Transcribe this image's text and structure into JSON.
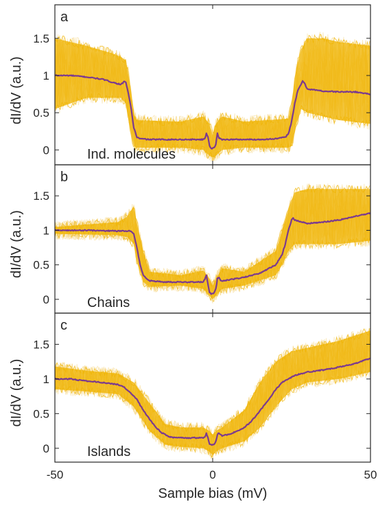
{
  "figure": {
    "xlabel": "Sample bias (mV)",
    "colors": {
      "band": "#f0b400",
      "band_light": "#f3cf6a",
      "mean": "#7b3a8f",
      "axis": "#262626"
    }
  },
  "chart_data": [
    {
      "type": "line",
      "panel": "a",
      "caption": "Ind. molecules",
      "xlabel": "Sample bias (mV)",
      "ylabel": "dI/dV (a.u.)",
      "xlim": [
        -50,
        50
      ],
      "ylim": [
        -0.2,
        1.95
      ],
      "xticks": [
        "-50",
        "0",
        "50"
      ],
      "yticks": [
        {
          "v": 0,
          "label": "0"
        },
        {
          "v": 0.5,
          "label": "0.5"
        },
        {
          "v": 1,
          "label": "1"
        },
        {
          "v": 1.5,
          "label": "1.5"
        }
      ],
      "grid": false,
      "series": [
        {
          "role": "mean",
          "x": [
            -50,
            -45,
            -40,
            -35,
            -31,
            -29,
            -28,
            -27.5,
            -27,
            -26,
            -25,
            -24,
            -23,
            -20,
            -15,
            -10,
            -5,
            -3,
            -2.4,
            -2,
            -1.5,
            -1,
            -0.5,
            0,
            0.5,
            1,
            1.5,
            2,
            2.4,
            3,
            5,
            10,
            15,
            20,
            23,
            24,
            25,
            26,
            27,
            28,
            28.5,
            29,
            30,
            35,
            40,
            45,
            50
          ],
          "y": [
            1.0,
            1.0,
            0.98,
            0.95,
            0.9,
            0.88,
            0.92,
            0.9,
            0.82,
            0.6,
            0.3,
            0.17,
            0.15,
            0.14,
            0.14,
            0.14,
            0.14,
            0.14,
            0.16,
            0.22,
            0.18,
            0.06,
            0.02,
            0.02,
            0.03,
            0.08,
            0.22,
            0.16,
            0.15,
            0.14,
            0.14,
            0.14,
            0.14,
            0.15,
            0.17,
            0.22,
            0.38,
            0.62,
            0.8,
            0.88,
            0.93,
            0.9,
            0.82,
            0.79,
            0.78,
            0.78,
            0.75
          ]
        },
        {
          "role": "band",
          "x": [
            -50,
            -40,
            -32,
            -29,
            -27.5,
            -26.5,
            -25,
            -24,
            -10,
            -3,
            -1,
            0,
            1,
            3,
            10,
            24,
            25,
            26.5,
            28,
            30,
            35,
            40,
            50
          ],
          "lower": [
            0.55,
            0.7,
            0.7,
            0.7,
            0.62,
            0.35,
            0.05,
            0.03,
            0.03,
            0.0,
            -0.08,
            -0.1,
            -0.08,
            0.0,
            0.03,
            0.03,
            0.05,
            0.35,
            0.55,
            0.5,
            0.45,
            0.4,
            0.35
          ],
          "upper": [
            1.5,
            1.4,
            1.3,
            1.25,
            1.2,
            0.95,
            0.48,
            0.4,
            0.38,
            0.45,
            0.35,
            0.2,
            0.35,
            0.45,
            0.38,
            0.42,
            0.6,
            1.1,
            1.35,
            1.5,
            1.5,
            1.45,
            1.4
          ]
        }
      ]
    },
    {
      "type": "line",
      "panel": "b",
      "caption": "Chains",
      "xlabel": "Sample bias (mV)",
      "ylabel": "dI/dV (a.u.)",
      "xlim": [
        -50,
        50
      ],
      "ylim": [
        -0.2,
        1.95
      ],
      "xticks": [
        "-50",
        "0",
        "50"
      ],
      "yticks": [
        {
          "v": 0,
          "label": "0"
        },
        {
          "v": 0.5,
          "label": "0.5"
        },
        {
          "v": 1,
          "label": "1"
        },
        {
          "v": 1.5,
          "label": "1.5"
        }
      ],
      "grid": false,
      "series": [
        {
          "role": "mean",
          "x": [
            -50,
            -40,
            -30,
            -26,
            -25,
            -24,
            -23,
            -22,
            -21,
            -20,
            -15,
            -10,
            -5,
            -3,
            -2.4,
            -2,
            -1.5,
            -1,
            -0.5,
            0,
            0.5,
            1,
            1.5,
            2,
            2.4,
            3,
            5,
            10,
            15,
            20,
            22,
            23,
            24,
            25,
            25.5,
            26,
            30,
            35,
            40,
            45,
            50
          ],
          "y": [
            1.0,
            1.0,
            0.99,
            0.99,
            0.95,
            0.75,
            0.5,
            0.35,
            0.3,
            0.27,
            0.25,
            0.25,
            0.25,
            0.25,
            0.3,
            0.35,
            0.22,
            0.1,
            0.08,
            0.08,
            0.1,
            0.15,
            0.3,
            0.32,
            0.28,
            0.27,
            0.28,
            0.32,
            0.38,
            0.5,
            0.65,
            0.8,
            1.0,
            1.15,
            1.18,
            1.15,
            1.1,
            1.12,
            1.15,
            1.2,
            1.25
          ]
        },
        {
          "role": "band",
          "x": [
            -50,
            -30,
            -27,
            -25,
            -24,
            -22,
            -20,
            -10,
            -3,
            -1,
            0,
            1,
            3,
            10,
            20,
            22,
            24,
            26,
            30,
            35,
            40,
            50
          ],
          "lower": [
            0.95,
            0.93,
            0.9,
            0.8,
            0.55,
            0.25,
            0.18,
            0.2,
            0.15,
            0.05,
            0.0,
            0.05,
            0.15,
            0.2,
            0.35,
            0.5,
            0.7,
            0.8,
            0.8,
            0.8,
            0.8,
            0.85
          ],
          "upper": [
            1.05,
            1.12,
            1.2,
            1.35,
            1.1,
            0.7,
            0.4,
            0.35,
            0.42,
            0.3,
            0.2,
            0.3,
            0.45,
            0.4,
            0.7,
            1.0,
            1.3,
            1.55,
            1.6,
            1.6,
            1.6,
            1.6
          ]
        }
      ]
    },
    {
      "type": "line",
      "panel": "c",
      "caption": "Islands",
      "xlabel": "Sample bias (mV)",
      "ylabel": "dI/dV (a.u.)",
      "xlim": [
        -50,
        50
      ],
      "ylim": [
        -0.2,
        1.95
      ],
      "xticks": [
        "-50",
        "0",
        "50"
      ],
      "yticks": [
        {
          "v": 0,
          "label": "0"
        },
        {
          "v": 0.5,
          "label": "0.5"
        },
        {
          "v": 1,
          "label": "1"
        },
        {
          "v": 1.5,
          "label": "1.5"
        }
      ],
      "grid": false,
      "series": [
        {
          "role": "mean",
          "x": [
            -50,
            -45,
            -40,
            -35,
            -30,
            -28,
            -26,
            -24,
            -22,
            -20,
            -18,
            -16,
            -14,
            -12,
            -10,
            -5,
            -3,
            -2.4,
            -2,
            -1.5,
            -1,
            -0.5,
            0,
            0.5,
            1,
            1.5,
            2,
            2.4,
            3,
            5,
            8,
            10,
            12,
            14,
            16,
            18,
            20,
            22,
            24,
            26,
            30,
            35,
            40,
            45,
            50
          ],
          "y": [
            1.0,
            1.0,
            0.97,
            0.95,
            0.92,
            0.88,
            0.8,
            0.7,
            0.55,
            0.42,
            0.3,
            0.22,
            0.17,
            0.15,
            0.15,
            0.15,
            0.15,
            0.17,
            0.22,
            0.15,
            0.06,
            0.05,
            0.05,
            0.06,
            0.1,
            0.2,
            0.22,
            0.2,
            0.18,
            0.2,
            0.25,
            0.3,
            0.38,
            0.48,
            0.6,
            0.72,
            0.85,
            0.95,
            1.0,
            1.05,
            1.1,
            1.13,
            1.17,
            1.22,
            1.3
          ]
        },
        {
          "role": "band",
          "x": [
            -50,
            -40,
            -30,
            -25,
            -20,
            -15,
            -10,
            -3,
            -1,
            0,
            1,
            3,
            10,
            15,
            20,
            25,
            30,
            40,
            50
          ],
          "lower": [
            0.85,
            0.82,
            0.78,
            0.6,
            0.25,
            0.05,
            0.02,
            0.0,
            -0.05,
            -0.1,
            -0.05,
            0.0,
            0.1,
            0.3,
            0.6,
            0.85,
            0.95,
            1.0,
            1.1
          ],
          "upper": [
            1.18,
            1.12,
            1.08,
            0.95,
            0.65,
            0.35,
            0.3,
            0.3,
            0.25,
            0.2,
            0.25,
            0.3,
            0.55,
            0.95,
            1.25,
            1.4,
            1.45,
            1.55,
            1.7
          ]
        }
      ]
    }
  ]
}
